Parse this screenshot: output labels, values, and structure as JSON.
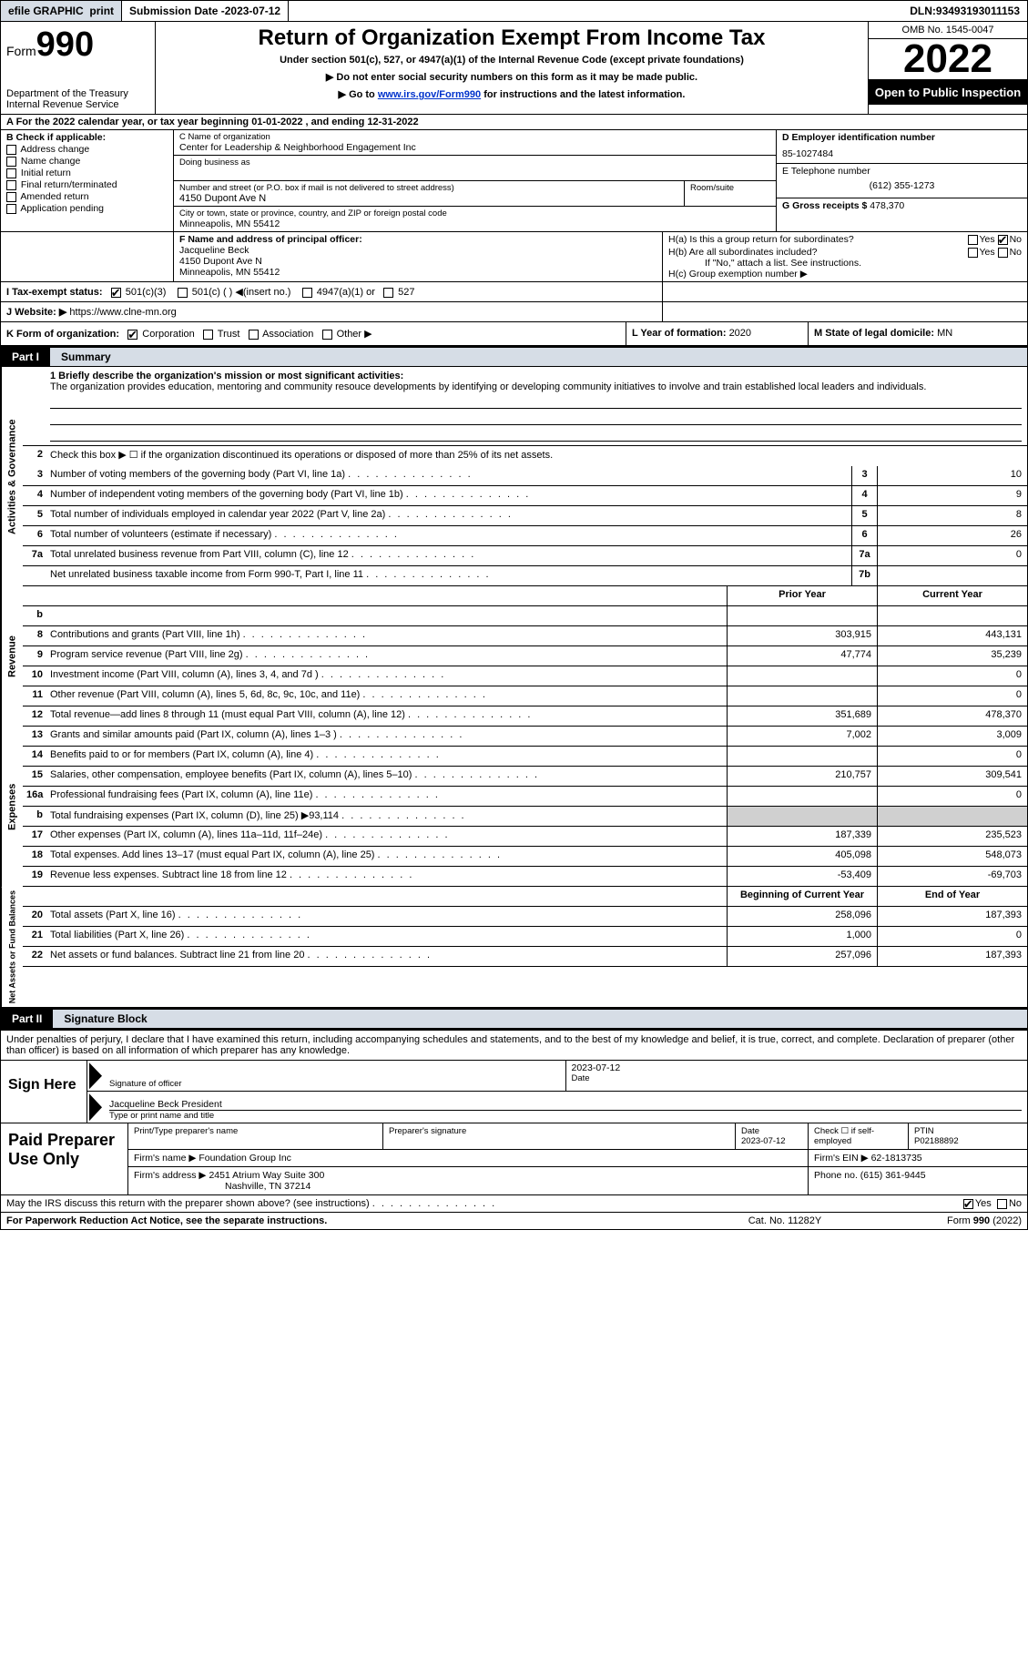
{
  "topbar": {
    "efile": "efile GRAPHIC",
    "print": "print",
    "subdate_label": "Submission Date - ",
    "subdate": "2023-07-12",
    "dln_label": "DLN: ",
    "dln": "93493193011153"
  },
  "header": {
    "form_label": "Form",
    "form_num": "990",
    "title": "Return of Organization Exempt From Income Tax",
    "sub1": "Under section 501(c), 527, or 4947(a)(1) of the Internal Revenue Code (except private foundations)",
    "sub2": "▶ Do not enter social security numbers on this form as it may be made public.",
    "sub3_pre": "▶ Go to ",
    "sub3_link": "www.irs.gov/Form990",
    "sub3_post": " for instructions and the latest information.",
    "dept": "Department of the Treasury",
    "irs": "Internal Revenue Service",
    "omb": "OMB No. 1545-0047",
    "year": "2022",
    "open": "Open to Public Inspection"
  },
  "line_a": "A For the 2022 calendar year, or tax year beginning 01-01-2022   , and ending 12-31-2022",
  "col_b": {
    "hdr": "B Check if applicable:",
    "items": [
      "Address change",
      "Name change",
      "Initial return",
      "Final return/terminated",
      "Amended return",
      "Application pending"
    ]
  },
  "col_c": {
    "name_label": "C Name of organization",
    "name": "Center for Leadership & Neighborhood Engagement Inc",
    "dba_label": "Doing business as",
    "addr_label": "Number and street (or P.O. box if mail is not delivered to street address)",
    "room_label": "Room/suite",
    "addr": "4150 Dupont Ave N",
    "city_label": "City or town, state or province, country, and ZIP or foreign postal code",
    "city": "Minneapolis, MN  55412"
  },
  "col_d": {
    "ein_label": "D Employer identification number",
    "ein": "85-1027484",
    "phone_label": "E Telephone number",
    "phone": "(612) 355-1273",
    "gross_label": "G Gross receipts $ ",
    "gross": "478,370"
  },
  "row_f": {
    "label": "F  Name and address of principal officer:",
    "name": "Jacqueline Beck",
    "addr1": "4150 Dupont Ave N",
    "addr2": "Minneapolis, MN  55412"
  },
  "row_h": {
    "ha": "H(a)  Is this a group return for subordinates?",
    "hb": "H(b)  Are all subordinates included?",
    "hb_note": "If \"No,\" attach a list. See instructions.",
    "hc": "H(c)  Group exemption number ▶",
    "yes": "Yes",
    "no": "No"
  },
  "row_i": {
    "label": "I   Tax-exempt status:",
    "opts": [
      "501(c)(3)",
      "501(c) (  ) ◀(insert no.)",
      "4947(a)(1) or",
      "527"
    ]
  },
  "row_j": {
    "label": "J   Website: ▶  ",
    "url": "https://www.clne-mn.org"
  },
  "row_k": {
    "label": "K Form of organization:",
    "opts": [
      "Corporation",
      "Trust",
      "Association",
      "Other ▶"
    ],
    "year_label": "L Year of formation: ",
    "year": "2020",
    "state_label": "M State of legal domicile: ",
    "state": "MN"
  },
  "part1": {
    "tab": "Part I",
    "title": "Summary"
  },
  "mission": {
    "label": "1   Briefly describe the organization's mission or most significant activities:",
    "text": "The organization provides education, mentoring and community resouce developments by identifying or developing community initiatives to involve and train established local leaders and individuals."
  },
  "line2": "Check this box ▶ ☐  if the organization discontinued its operations or disposed of more than 25% of its net assets.",
  "sidebars": {
    "gov": "Activities & Governance",
    "rev": "Revenue",
    "exp": "Expenses",
    "net": "Net Assets or Fund Balances"
  },
  "rows_gov": [
    {
      "n": "3",
      "d": "Number of voting members of the governing body (Part VI, line 1a)",
      "box": "3",
      "v": "10"
    },
    {
      "n": "4",
      "d": "Number of independent voting members of the governing body (Part VI, line 1b)",
      "box": "4",
      "v": "9"
    },
    {
      "n": "5",
      "d": "Total number of individuals employed in calendar year 2022 (Part V, line 2a)",
      "box": "5",
      "v": "8"
    },
    {
      "n": "6",
      "d": "Total number of volunteers (estimate if necessary)",
      "box": "6",
      "v": "26"
    },
    {
      "n": "7a",
      "d": "Total unrelated business revenue from Part VIII, column (C), line 12",
      "box": "7a",
      "v": "0"
    },
    {
      "n": "",
      "d": "Net unrelated business taxable income from Form 990-T, Part I, line 11",
      "box": "7b",
      "v": ""
    }
  ],
  "col_hdrs": {
    "prior": "Prior Year",
    "curr": "Current Year"
  },
  "rows_rev": [
    {
      "n": "b",
      "d": "",
      "p": "",
      "c": ""
    },
    {
      "n": "8",
      "d": "Contributions and grants (Part VIII, line 1h)",
      "p": "303,915",
      "c": "443,131"
    },
    {
      "n": "9",
      "d": "Program service revenue (Part VIII, line 2g)",
      "p": "47,774",
      "c": "35,239"
    },
    {
      "n": "10",
      "d": "Investment income (Part VIII, column (A), lines 3, 4, and 7d )",
      "p": "",
      "c": "0"
    },
    {
      "n": "11",
      "d": "Other revenue (Part VIII, column (A), lines 5, 6d, 8c, 9c, 10c, and 11e)",
      "p": "",
      "c": "0"
    },
    {
      "n": "12",
      "d": "Total revenue—add lines 8 through 11 (must equal Part VIII, column (A), line 12)",
      "p": "351,689",
      "c": "478,370"
    }
  ],
  "rows_exp": [
    {
      "n": "13",
      "d": "Grants and similar amounts paid (Part IX, column (A), lines 1–3 )",
      "p": "7,002",
      "c": "3,009"
    },
    {
      "n": "14",
      "d": "Benefits paid to or for members (Part IX, column (A), line 4)",
      "p": "",
      "c": "0"
    },
    {
      "n": "15",
      "d": "Salaries, other compensation, employee benefits (Part IX, column (A), lines 5–10)",
      "p": "210,757",
      "c": "309,541"
    },
    {
      "n": "16a",
      "d": "Professional fundraising fees (Part IX, column (A), line 11e)",
      "p": "",
      "c": "0"
    },
    {
      "n": "b",
      "d": "Total fundraising expenses (Part IX, column (D), line 25) ▶93,114",
      "p": "shade",
      "c": "shade"
    },
    {
      "n": "17",
      "d": "Other expenses (Part IX, column (A), lines 11a–11d, 11f–24e)",
      "p": "187,339",
      "c": "235,523"
    },
    {
      "n": "18",
      "d": "Total expenses. Add lines 13–17 (must equal Part IX, column (A), line 25)",
      "p": "405,098",
      "c": "548,073"
    },
    {
      "n": "19",
      "d": "Revenue less expenses. Subtract line 18 from line 12",
      "p": "-53,409",
      "c": "-69,703"
    }
  ],
  "col_hdrs2": {
    "prior": "Beginning of Current Year",
    "curr": "End of Year"
  },
  "rows_net": [
    {
      "n": "20",
      "d": "Total assets (Part X, line 16)",
      "p": "258,096",
      "c": "187,393"
    },
    {
      "n": "21",
      "d": "Total liabilities (Part X, line 26)",
      "p": "1,000",
      "c": "0"
    },
    {
      "n": "22",
      "d": "Net assets or fund balances. Subtract line 21 from line 20",
      "p": "257,096",
      "c": "187,393"
    }
  ],
  "part2": {
    "tab": "Part II",
    "title": "Signature Block"
  },
  "penalty": "Under penalties of perjury, I declare that I have examined this return, including accompanying schedules and statements, and to the best of my knowledge and belief, it is true, correct, and complete. Declaration of preparer (other than officer) is based on all information of which preparer has any knowledge.",
  "sign": {
    "label": "Sign Here",
    "sig_label": "Signature of officer",
    "date_label": "Date",
    "date": "2023-07-12",
    "name": "Jacqueline Beck  President",
    "name_label": "Type or print name and title"
  },
  "paid": {
    "label": "Paid Preparer Use Only",
    "h1": "Print/Type preparer's name",
    "h2": "Preparer's signature",
    "h3_label": "Date",
    "h3": "2023-07-12",
    "h4": "Check ☐ if self-employed",
    "h5_label": "PTIN",
    "h5": "P02188892",
    "firm_label": "Firm's name     ▶ ",
    "firm": "Foundation Group Inc",
    "ein_label": "Firm's EIN ▶ ",
    "ein": "62-1813735",
    "addr_label": "Firm's address ▶ ",
    "addr1": "2451 Atrium Way Suite 300",
    "addr2": "Nashville, TN  37214",
    "phone_label": "Phone no. ",
    "phone": "(615) 361-9445"
  },
  "may": {
    "text": "May the IRS discuss this return with the preparer shown above? (see instructions)",
    "yes": "Yes",
    "no": "No"
  },
  "footer": {
    "f1": "For Paperwork Reduction Act Notice, see the separate instructions.",
    "f2": "Cat. No. 11282Y",
    "f3": "Form 990 (2022)"
  }
}
